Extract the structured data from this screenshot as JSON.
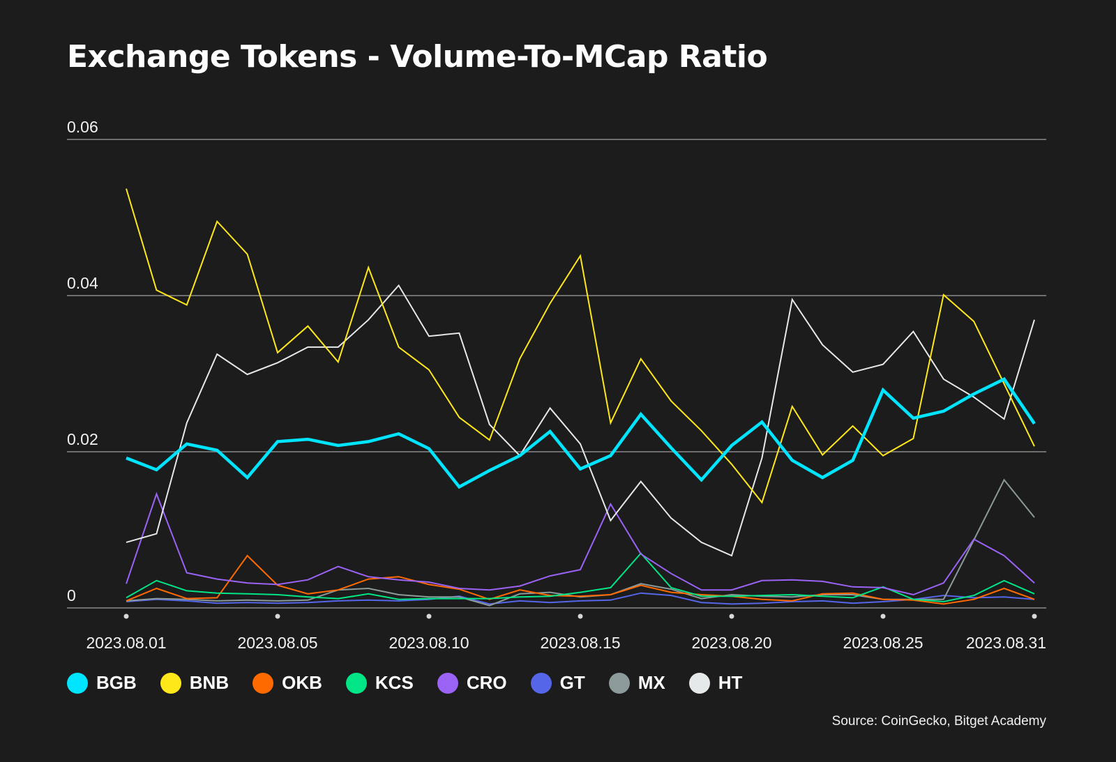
{
  "chart_data": {
    "type": "line",
    "title": "Exchange Tokens - Volume-To-MCap Ratio",
    "xlabel": "",
    "ylabel": "",
    "ylim": [
      0,
      0.06
    ],
    "yticks": [
      0,
      0.02,
      0.04,
      0.06
    ],
    "ytick_labels": [
      "0",
      "0.02",
      "0.04",
      "0.06"
    ],
    "grid": true,
    "legend_position": "bottom-left",
    "x": [
      "2023.08.01",
      "2023.08.02",
      "2023.08.03",
      "2023.08.04",
      "2023.08.05",
      "2023.08.06",
      "2023.08.07",
      "2023.08.08",
      "2023.08.09",
      "2023.08.10",
      "2023.08.11",
      "2023.08.12",
      "2023.08.13",
      "2023.08.14",
      "2023.08.15",
      "2023.08.16",
      "2023.08.17",
      "2023.08.18",
      "2023.08.19",
      "2023.08.20",
      "2023.08.21",
      "2023.08.22",
      "2023.08.23",
      "2023.08.24",
      "2023.08.25",
      "2023.08.26",
      "2023.08.27",
      "2023.08.28",
      "2023.08.29",
      "2023.08.30",
      "2023.08.31"
    ],
    "xtick_labels": [
      {
        "index": 0,
        "label": "2023.08.01"
      },
      {
        "index": 5,
        "label": "2023.08.05"
      },
      {
        "index": 10,
        "label": "2023.08.10"
      },
      {
        "index": 15,
        "label": "2023.08.15"
      },
      {
        "index": 20,
        "label": "2023.08.20"
      },
      {
        "index": 25,
        "label": "2023.08.25"
      },
      {
        "index": 30,
        "label": "2023.08.31"
      }
    ],
    "series": [
      {
        "name": "BGB",
        "color": "#00e5ff",
        "emphasis": true,
        "values": [
          0.0192,
          0.0177,
          0.021,
          0.0202,
          0.0167,
          0.0213,
          0.0216,
          0.0208,
          0.0213,
          0.0223,
          0.0204,
          0.0155,
          0.0176,
          0.0195,
          0.0226,
          0.0178,
          0.0195,
          0.0248,
          0.0205,
          0.0164,
          0.0208,
          0.0238,
          0.0189,
          0.0167,
          0.0189,
          0.0279,
          0.0243,
          0.0252,
          0.0274,
          0.0293,
          0.0236
        ]
      },
      {
        "name": "BNB",
        "color": "#ffe81a",
        "values": [
          0.0537,
          0.0407,
          0.0388,
          0.0495,
          0.0453,
          0.0327,
          0.0361,
          0.0315,
          0.0436,
          0.0334,
          0.0305,
          0.0244,
          0.0215,
          0.0319,
          0.039,
          0.0451,
          0.0237,
          0.0319,
          0.0265,
          0.0227,
          0.0184,
          0.0135,
          0.0258,
          0.0196,
          0.0233,
          0.0195,
          0.0217,
          0.0401,
          0.0367,
          0.0287,
          0.0207
        ]
      },
      {
        "name": "OKB",
        "color": "#ff6a00",
        "values": [
          0.0009,
          0.0025,
          0.0012,
          0.0013,
          0.0067,
          0.0029,
          0.0018,
          0.0023,
          0.0037,
          0.004,
          0.003,
          0.0024,
          0.0011,
          0.0023,
          0.0016,
          0.0015,
          0.0017,
          0.0029,
          0.002,
          0.0017,
          0.0015,
          0.0011,
          0.0009,
          0.0018,
          0.0019,
          0.0011,
          0.001,
          0.0005,
          0.0011,
          0.0025,
          0.0011
        ]
      },
      {
        "name": "KCS",
        "color": "#00e585",
        "values": [
          0.0013,
          0.0035,
          0.0022,
          0.0019,
          0.0018,
          0.0017,
          0.0014,
          0.0012,
          0.0018,
          0.0011,
          0.0012,
          0.0012,
          0.0012,
          0.0014,
          0.0015,
          0.002,
          0.0026,
          0.007,
          0.0026,
          0.0015,
          0.0015,
          0.0016,
          0.0017,
          0.0015,
          0.0013,
          0.0027,
          0.0011,
          0.0008,
          0.0016,
          0.0035,
          0.0018
        ]
      },
      {
        "name": "CRO",
        "color": "#9b63f5",
        "values": [
          0.0031,
          0.0146,
          0.0045,
          0.0037,
          0.0032,
          0.003,
          0.0036,
          0.0053,
          0.004,
          0.0036,
          0.0033,
          0.0025,
          0.0023,
          0.0028,
          0.0041,
          0.0049,
          0.0133,
          0.0069,
          0.0044,
          0.0023,
          0.0023,
          0.0035,
          0.0036,
          0.0034,
          0.0027,
          0.0026,
          0.0017,
          0.0032,
          0.0088,
          0.0067,
          0.0032
        ]
      },
      {
        "name": "GT",
        "color": "#5566e8",
        "values": [
          0.0008,
          0.0011,
          0.0009,
          0.0006,
          0.0007,
          0.0006,
          0.0007,
          0.0009,
          0.001,
          0.0009,
          0.0011,
          0.0015,
          0.0005,
          0.0009,
          0.0007,
          0.0009,
          0.001,
          0.0019,
          0.0016,
          0.0007,
          0.0005,
          0.0006,
          0.0008,
          0.0009,
          0.0006,
          0.0008,
          0.0011,
          0.0016,
          0.0013,
          0.0014,
          0.0011
        ]
      },
      {
        "name": "MX",
        "color": "#8c9a9a",
        "values": [
          0.0009,
          0.0012,
          0.0011,
          0.0009,
          0.001,
          0.0009,
          0.001,
          0.0023,
          0.0025,
          0.0017,
          0.0014,
          0.0014,
          0.0003,
          0.0018,
          0.002,
          0.0014,
          0.0017,
          0.0031,
          0.0024,
          0.0012,
          0.0017,
          0.0015,
          0.0014,
          0.0017,
          0.0017,
          0.0011,
          0.0011,
          0.0011,
          0.0087,
          0.0164,
          0.0116
        ]
      },
      {
        "name": "HT",
        "color": "#e6e9e9",
        "values": [
          0.0084,
          0.0095,
          0.0237,
          0.0325,
          0.0299,
          0.0314,
          0.0334,
          0.0334,
          0.0369,
          0.0413,
          0.0348,
          0.0352,
          0.0235,
          0.0195,
          0.0256,
          0.021,
          0.0112,
          0.0162,
          0.0115,
          0.0084,
          0.0067,
          0.0192,
          0.0395,
          0.0337,
          0.0302,
          0.0312,
          0.0354,
          0.0293,
          0.027,
          0.0242,
          0.0369
        ]
      }
    ],
    "draw_order": [
      "GT",
      "MX",
      "OKB",
      "KCS",
      "CRO",
      "HT",
      "BNB",
      "BGB"
    ]
  },
  "source": "Source: CoinGecko, Bitget Academy"
}
